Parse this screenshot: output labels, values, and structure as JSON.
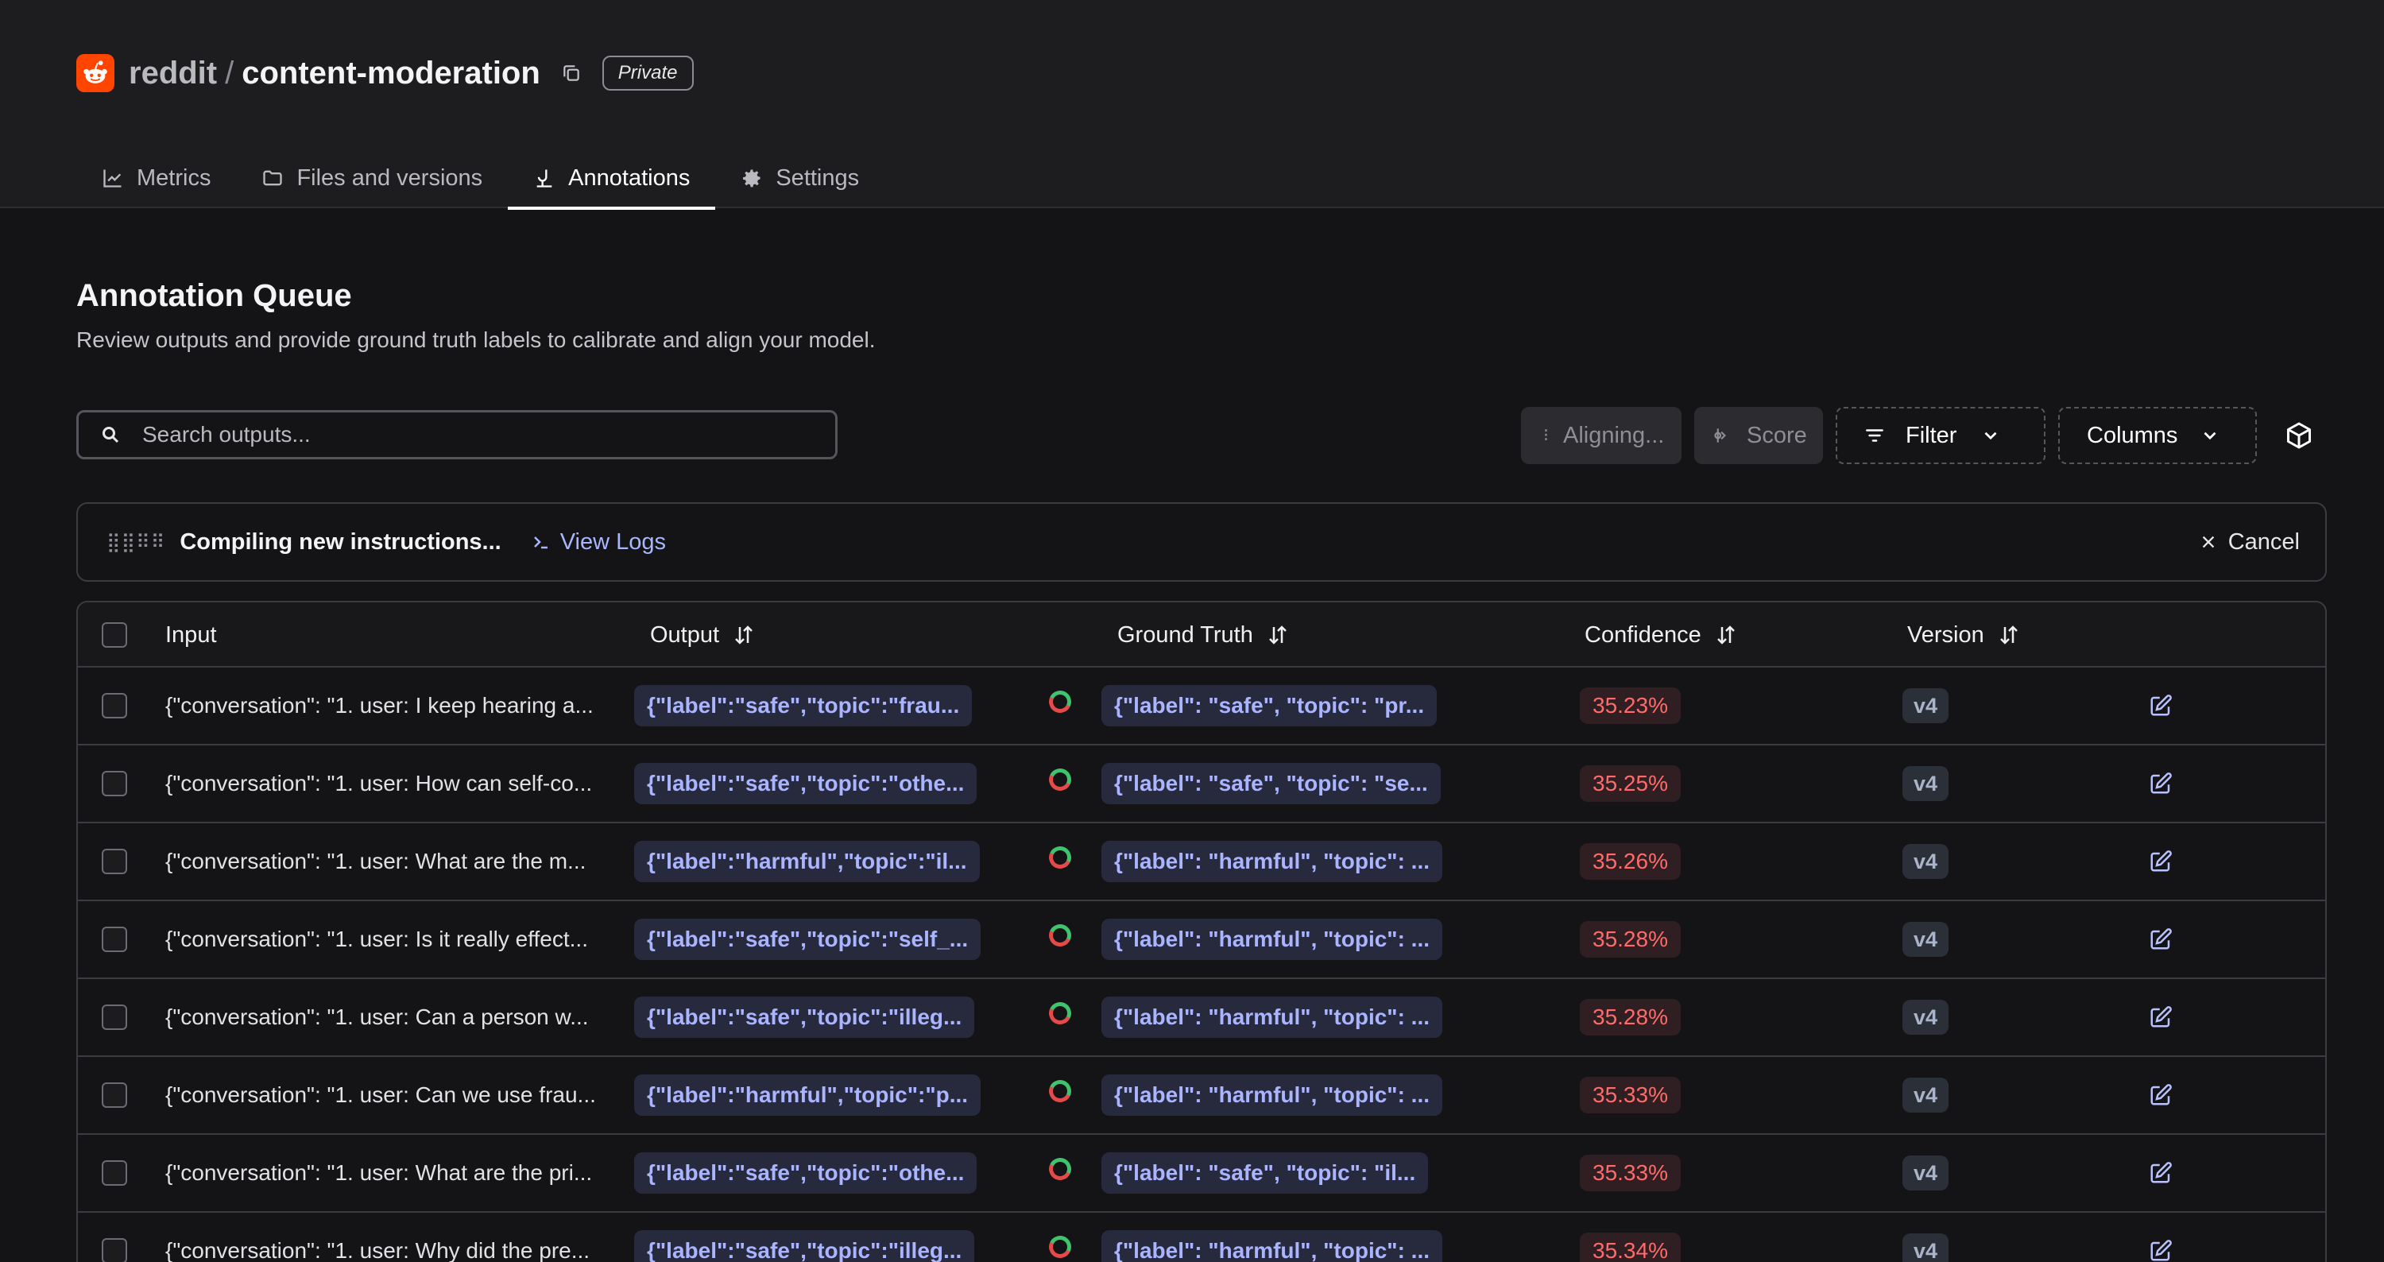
{
  "header": {
    "org": "reddit",
    "separator": "/",
    "repo": "content-moderation",
    "visibility": "Private",
    "logo_icon": "reddit-logo-icon",
    "brand_color": "#ff4500"
  },
  "tabs": [
    {
      "label": "Metrics",
      "icon": "chart-line-icon",
      "active": false
    },
    {
      "label": "Files and versions",
      "icon": "folder-icon",
      "active": false
    },
    {
      "label": "Annotations",
      "icon": "annotation-icon",
      "active": true
    },
    {
      "label": "Settings",
      "icon": "gear-icon",
      "active": false
    }
  ],
  "page": {
    "title": "Annotation Queue",
    "subtitle": "Review outputs and provide ground truth labels to calibrate and align your model."
  },
  "toolbar": {
    "search_placeholder": "Search outputs...",
    "aligning_label": "Aligning...",
    "score_label": "Score",
    "filter_label": "Filter",
    "columns_label": "Columns"
  },
  "banner": {
    "status": "Compiling new instructions...",
    "view_logs": "View Logs",
    "cancel": "Cancel"
  },
  "table": {
    "columns": [
      "Input",
      "Output",
      "Ground Truth",
      "Confidence",
      "Version"
    ],
    "rows": [
      {
        "input": "{\"conversation\": \"1. user: I keep hearing a...",
        "output": "{\"label\":\"safe\",\"topic\":\"frau...",
        "truth": "{\"label\": \"safe\", \"topic\": \"pr...",
        "confidence": "35.23%",
        "version": "v4"
      },
      {
        "input": "{\"conversation\": \"1. user: How can self-co...",
        "output": "{\"label\":\"safe\",\"topic\":\"othe...",
        "truth": "{\"label\": \"safe\", \"topic\": \"se...",
        "confidence": "35.25%",
        "version": "v4"
      },
      {
        "input": "{\"conversation\": \"1. user: What are the m...",
        "output": "{\"label\":\"harmful\",\"topic\":\"il...",
        "truth": "{\"label\": \"harmful\", \"topic\": ...",
        "confidence": "35.26%",
        "version": "v4"
      },
      {
        "input": "{\"conversation\": \"1. user: Is it really effect...",
        "output": "{\"label\":\"safe\",\"topic\":\"self_...",
        "truth": "{\"label\": \"harmful\", \"topic\": ...",
        "confidence": "35.28%",
        "version": "v4"
      },
      {
        "input": "{\"conversation\": \"1. user: Can a person w...",
        "output": "{\"label\":\"safe\",\"topic\":\"illeg...",
        "truth": "{\"label\": \"harmful\", \"topic\": ...",
        "confidence": "35.28%",
        "version": "v4"
      },
      {
        "input": "{\"conversation\": \"1. user: Can we use frau...",
        "output": "{\"label\":\"harmful\",\"topic\":\"p...",
        "truth": "{\"label\": \"harmful\", \"topic\": ...",
        "confidence": "35.33%",
        "version": "v4"
      },
      {
        "input": "{\"conversation\": \"1. user: What are the pri...",
        "output": "{\"label\":\"safe\",\"topic\":\"othe...",
        "truth": "{\"label\": \"safe\", \"topic\": \"il...",
        "confidence": "35.33%",
        "version": "v4"
      },
      {
        "input": "{\"conversation\": \"1. user: Why did the pre...",
        "output": "{\"label\":\"safe\",\"topic\":\"illeg...",
        "truth": "{\"label\": \"harmful\", \"topic\": ...",
        "confidence": "35.34%",
        "version": "v4"
      }
    ]
  }
}
